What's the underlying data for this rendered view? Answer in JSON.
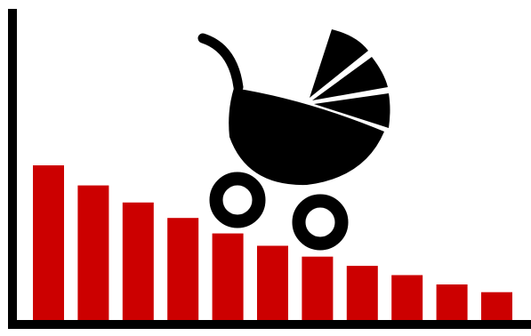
{
  "chart_data": {
    "type": "bar",
    "categories": [
      "",
      "",
      "",
      "",
      "",
      "",
      "",
      "",
      "",
      "",
      ""
    ],
    "values": [
      100,
      87,
      76,
      66,
      56,
      48,
      41,
      35,
      29,
      23,
      18
    ],
    "ylim": [
      0,
      100
    ],
    "title": "",
    "xlabel": "",
    "ylabel": "",
    "grid": false,
    "legend": "none",
    "bar_color": "#cc0000",
    "axis_color": "#000000"
  },
  "illustration": {
    "icon": "baby-stroller-icon",
    "color": "#000000"
  }
}
